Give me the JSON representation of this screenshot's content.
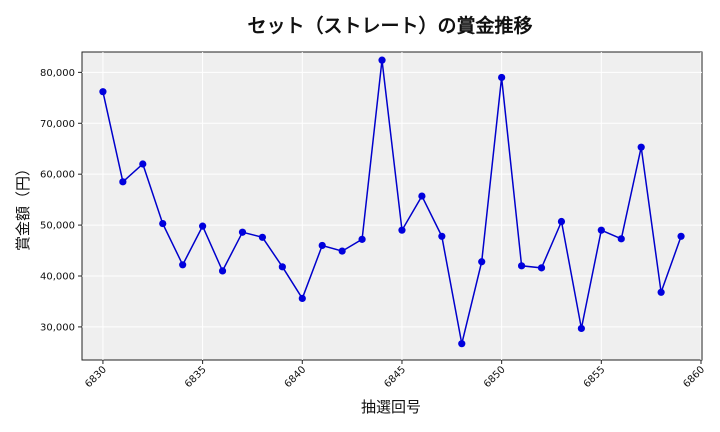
{
  "chart_data": {
    "type": "line",
    "title": "セット（ストレート）の賞金推移",
    "xlabel": "抽選回号",
    "ylabel": "賞金額（円）",
    "xlim": [
      6828.95,
      6860.05
    ],
    "ylim": [
      23500,
      84000
    ],
    "x_ticks": [
      6830,
      6835,
      6840,
      6845,
      6850,
      6855,
      6860
    ],
    "y_ticks": [
      30000,
      40000,
      50000,
      60000,
      70000,
      80000
    ],
    "y_tick_labels": [
      "30,000",
      "40,000",
      "50,000",
      "60,000",
      "70,000",
      "80,000"
    ],
    "grid": true,
    "line_color": "#0000cc",
    "marker_color": "#0000dd",
    "plot_bg": "#efefef",
    "x": [
      6830,
      6831,
      6832,
      6833,
      6834,
      6835,
      6836,
      6837,
      6838,
      6839,
      6840,
      6841,
      6842,
      6843,
      6844,
      6845,
      6846,
      6847,
      6848,
      6849,
      6850,
      6851,
      6852,
      6853,
      6854,
      6855,
      6856,
      6857,
      6858,
      6859
    ],
    "values": [
      76200,
      58500,
      62000,
      50300,
      42200,
      49800,
      41000,
      48600,
      47600,
      41800,
      35600,
      46000,
      44900,
      47200,
      82400,
      49000,
      55700,
      47800,
      26700,
      42800,
      79000,
      42000,
      41600,
      50700,
      29700,
      49000,
      47300,
      65300,
      36800,
      47800
    ]
  }
}
